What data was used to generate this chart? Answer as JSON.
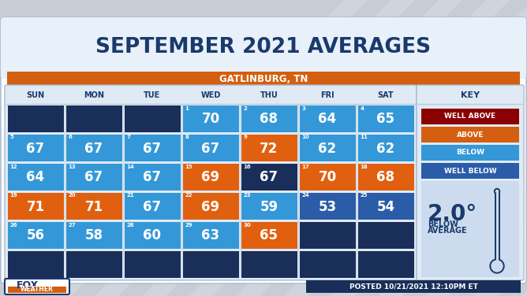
{
  "title": "SEPTEMBER 2021 AVERAGES",
  "subtitle": "GATLINBURG, TN",
  "background_top": "#e8eaec",
  "background_bottom": "#c8ccd4",
  "title_color": "#1a3a6b",
  "subtitle_bg": "#d45f10",
  "days_header": [
    "SUN",
    "MON",
    "TUE",
    "WED",
    "THU",
    "FRI",
    "SAT"
  ],
  "calendar": [
    [
      null,
      null,
      null,
      [
        1,
        70,
        "blue_light"
      ],
      [
        2,
        68,
        "blue_light"
      ],
      [
        3,
        64,
        "blue_light"
      ],
      [
        4,
        65,
        "blue_light"
      ]
    ],
    [
      [
        5,
        67,
        "blue_light"
      ],
      [
        6,
        67,
        "blue_light"
      ],
      [
        7,
        67,
        "blue_light"
      ],
      [
        8,
        67,
        "blue_light"
      ],
      [
        9,
        72,
        "orange"
      ],
      [
        10,
        62,
        "blue_light"
      ],
      [
        11,
        62,
        "blue_light"
      ]
    ],
    [
      [
        12,
        64,
        "blue_light"
      ],
      [
        13,
        67,
        "blue_light"
      ],
      [
        14,
        67,
        "blue_light"
      ],
      [
        15,
        69,
        "orange"
      ],
      [
        16,
        67,
        "blue_dark"
      ],
      [
        17,
        70,
        "orange"
      ],
      [
        18,
        68,
        "orange"
      ]
    ],
    [
      [
        19,
        71,
        "orange"
      ],
      [
        20,
        71,
        "orange"
      ],
      [
        21,
        67,
        "blue_light"
      ],
      [
        22,
        69,
        "orange"
      ],
      [
        23,
        59,
        "blue_light"
      ],
      [
        24,
        53,
        "blue_mid"
      ],
      [
        25,
        54,
        "blue_mid"
      ]
    ],
    [
      [
        26,
        56,
        "blue_light"
      ],
      [
        27,
        58,
        "blue_light"
      ],
      [
        28,
        60,
        "blue_light"
      ],
      [
        29,
        63,
        "blue_light"
      ],
      [
        30,
        65,
        "orange"
      ],
      null,
      null
    ]
  ],
  "colors": {
    "blue_dark": "#1a2e5a",
    "blue_mid": "#2a5ca8",
    "blue_light": "#3498d8",
    "orange": "#e06010",
    "well_above": "#8b0000",
    "above": "#d45f10",
    "below": "#3498d8",
    "well_below": "#2a5ca8",
    "header_bg": "#1a2e5a",
    "empty_cell": "#1a2e5a"
  },
  "key_labels": [
    "WELL ABOVE",
    "ABOVE",
    "BELOW",
    "WELL BELOW"
  ],
  "key_colors": [
    "#8b0000",
    "#d45f10",
    "#3498d8",
    "#2a5ca8"
  ],
  "summary_value": "2.0°",
  "summary_line1": "BELOW",
  "summary_line2": "AVERAGE",
  "footer_text": "POSTED 10/21/2021 12:10PM ET",
  "panel_bg": "#e0eaf5",
  "panel_border": "#a8bcd0",
  "header_text_color": "#1a3a6b"
}
